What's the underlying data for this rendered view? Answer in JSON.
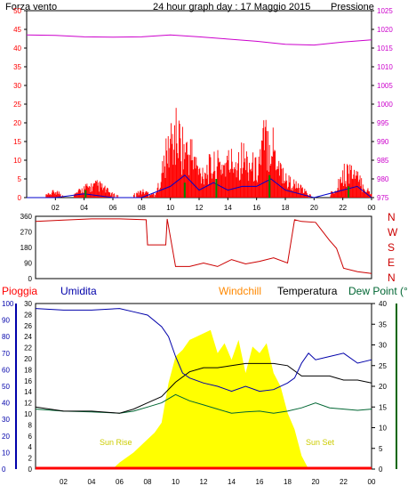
{
  "header": {
    "title": "24 hour graph day : 17 Maggio 2015"
  },
  "colors": {
    "wind": "#ff0000",
    "gust": "#0000cc",
    "wind_green": "#008800",
    "pressure": "#cc00cc",
    "direction": "#cc0000",
    "rain": "#ff0000",
    "humidity": "#0000aa",
    "windchill": "#ff8800",
    "temperature": "#000000",
    "dewpoint": "#006633",
    "solar": "#ffff00",
    "axis_blue": "#0000aa",
    "axis_green": "#006600"
  },
  "chart_data": [
    {
      "type": "line",
      "name": "wind-pressure",
      "left_label": "Forza vento",
      "right_label": "Pressione",
      "left_ticks": [
        "0",
        "5",
        "10",
        "15",
        "20",
        "25",
        "30",
        "35",
        "40",
        "45",
        "50"
      ],
      "right_ticks": [
        "975",
        "980",
        "985",
        "990",
        "995",
        "1000",
        "1005",
        "1010",
        "1015",
        "1020",
        "1025"
      ],
      "x_ticks": [
        "02",
        "04",
        "06",
        "08",
        "10",
        "12",
        "14",
        "16",
        "18",
        "20",
        "22",
        "00"
      ],
      "ylim_left": [
        0,
        50
      ],
      "ylim_right": [
        975,
        1025
      ],
      "pressure": {
        "hours": [
          0,
          2,
          4,
          6,
          8,
          10,
          12,
          14,
          16,
          18,
          20,
          22,
          24
        ],
        "values": [
          1018.5,
          1018.4,
          1018.0,
          1017.9,
          1018.0,
          1018.5,
          1018.0,
          1017.4,
          1016.8,
          1016.0,
          1015.8,
          1016.6,
          1017.2
        ]
      },
      "wind": {
        "hours": [
          0,
          1,
          2,
          3,
          4,
          5,
          6,
          7,
          8,
          9,
          10,
          10.5,
          11,
          11.5,
          12,
          13,
          14,
          15,
          16,
          16.5,
          17,
          17.5,
          18,
          19,
          20,
          21,
          22,
          22.5,
          23,
          24
        ],
        "values": [
          0,
          0,
          2,
          0,
          3,
          4,
          1,
          0,
          2,
          1,
          18,
          20,
          15,
          14,
          8,
          10,
          11,
          13,
          9,
          18,
          19,
          12,
          6,
          3,
          0,
          0,
          7,
          9,
          6,
          1
        ]
      },
      "gust": {
        "hours": [
          0,
          2,
          4,
          6,
          8,
          10,
          11,
          12,
          13,
          14,
          15,
          16,
          17,
          18,
          19,
          20,
          22,
          23,
          24
        ],
        "values": [
          0,
          0,
          1,
          0,
          0,
          3,
          6,
          2,
          4,
          2,
          3,
          3,
          5,
          2,
          1,
          0,
          2,
          3,
          0
        ]
      }
    },
    {
      "type": "line",
      "name": "wind-direction",
      "left_ticks": [
        "360",
        "270",
        "180",
        "90",
        "0"
      ],
      "right_ticks": [
        "N",
        "W",
        "S",
        "E",
        "N"
      ],
      "ylim": [
        0,
        360
      ],
      "hours": [
        0,
        2,
        4,
        6,
        7.9,
        8,
        9.3,
        9.4,
        10,
        11,
        12,
        13,
        14,
        15,
        16,
        17,
        18,
        18.5,
        19,
        20,
        21,
        21.5,
        22,
        23,
        24
      ],
      "values": [
        330,
        338,
        345,
        345,
        340,
        195,
        195,
        345,
        70,
        70,
        90,
        70,
        110,
        85,
        100,
        120,
        90,
        340,
        330,
        325,
        220,
        175,
        60,
        40,
        30
      ]
    },
    {
      "type": "line",
      "name": "rain-humidity-temperature",
      "legend": [
        "Pioggia",
        "Umidita",
        "Windchill",
        "Temperatura",
        "Dew Point (°C"
      ],
      "rain_ticks": [
        "0",
        "2",
        "4",
        "6",
        "8",
        "10",
        "12",
        "14",
        "16",
        "18",
        "20",
        "22",
        "24",
        "26",
        "28",
        "30"
      ],
      "humidity_ticks": [
        "0",
        "10",
        "20",
        "30",
        "40",
        "50",
        "60",
        "70",
        "80",
        "90",
        "100"
      ],
      "temperature_ticks": [
        "0",
        "5",
        "10",
        "15",
        "20",
        "25",
        "30",
        "35",
        "40"
      ],
      "x_ticks": [
        "02",
        "04",
        "06",
        "08",
        "10",
        "12",
        "14",
        "16",
        "18",
        "20",
        "22",
        "00"
      ],
      "annotations": [
        "Sun Rise",
        "Sun Set"
      ],
      "ylim_rain": [
        0,
        30
      ],
      "ylim_humidity": [
        0,
        100
      ],
      "ylim_temperature": [
        0,
        40
      ],
      "humidity": {
        "hours": [
          0,
          2,
          4,
          6,
          7,
          8,
          9,
          9.5,
          10,
          10.5,
          11,
          12,
          13,
          14,
          15,
          16,
          17,
          18,
          18.5,
          19,
          19.5,
          20,
          21,
          22,
          23,
          24
        ],
        "values": [
          97,
          96,
          96,
          97,
          95,
          93,
          86,
          80,
          68,
          58,
          55,
          52,
          50,
          47,
          50,
          47,
          48,
          52,
          55,
          64,
          70,
          66,
          68,
          70,
          64,
          66
        ]
      },
      "temperature": {
        "hours": [
          0,
          2,
          4,
          6,
          7,
          8,
          9,
          10,
          11,
          12,
          13,
          14,
          15,
          16,
          17,
          18,
          19,
          20,
          21,
          22,
          23,
          24
        ],
        "values": [
          15,
          14,
          14,
          13.5,
          14.5,
          16,
          17.5,
          21,
          23.5,
          24.5,
          24.5,
          25,
          25.5,
          25.5,
          25.5,
          25,
          22.5,
          22.5,
          22.5,
          21.5,
          21.5,
          20.8
        ]
      },
      "dewpoint": {
        "hours": [
          0,
          2,
          4,
          6,
          7,
          8,
          9,
          10,
          11,
          12,
          13,
          14,
          15,
          16,
          17,
          18,
          19,
          20,
          21,
          22,
          23,
          24
        ],
        "values": [
          14.5,
          14,
          13.8,
          13.5,
          14,
          15,
          16,
          18,
          16.5,
          15.5,
          14.5,
          13.5,
          13.8,
          14,
          13.5,
          14,
          14.8,
          16,
          14.8,
          14.5,
          14.2,
          14.5
        ]
      },
      "rain": {
        "hours": [
          0,
          24
        ],
        "values": [
          0,
          0
        ]
      },
      "solar": {
        "hours": [
          5.5,
          6,
          7,
          8,
          8.5,
          9,
          9.5,
          10,
          10.5,
          11,
          11.5,
          12,
          12.5,
          13,
          13.5,
          14,
          14.5,
          15,
          15.5,
          16,
          16.5,
          17,
          17.5,
          18,
          18.5,
          19,
          19.5
        ],
        "values": [
          0,
          4,
          10,
          18,
          22,
          28,
          52,
          68,
          72,
          78,
          80,
          82,
          84,
          70,
          76,
          66,
          78,
          58,
          74,
          70,
          76,
          58,
          50,
          34,
          24,
          8,
          0
        ]
      }
    }
  ]
}
